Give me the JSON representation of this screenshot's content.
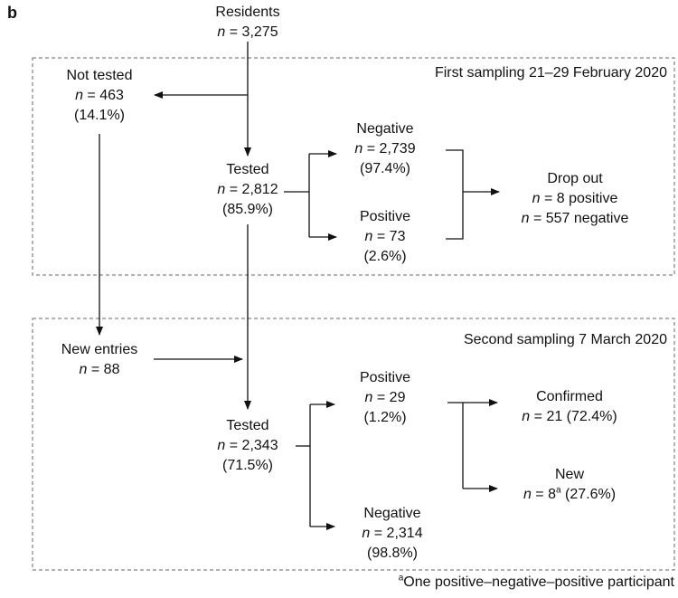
{
  "panel_label": "b",
  "sections": {
    "first": "First sampling 21–29 February 2020",
    "second": "Second sampling 7 March 2020"
  },
  "n_symbol": "n",
  "equals": " = ",
  "nodes": {
    "residents": {
      "label": "Residents",
      "count": "3,275"
    },
    "not_tested": {
      "label": "Not tested",
      "count": "463",
      "percent": "(14.1%)"
    },
    "tested_1": {
      "label": "Tested",
      "count": "2,812",
      "percent": "(85.9%)"
    },
    "negative_1": {
      "label": "Negative",
      "count": "2,739",
      "percent": "(97.4%)"
    },
    "positive_1": {
      "label": "Positive",
      "count": "73",
      "percent": "(2.6%)"
    },
    "drop_out": {
      "label": "Drop out",
      "line1": "8 positive",
      "line2": "557 negative"
    },
    "new_entries": {
      "label": "New entries",
      "count": "88"
    },
    "tested_2": {
      "label": "Tested",
      "count": "2,343",
      "percent": "(71.5%)"
    },
    "positive_2": {
      "label": "Positive",
      "count": "29",
      "percent": "(1.2%)"
    },
    "negative_2": {
      "label": "Negative",
      "count": "2,314",
      "percent": "(98.8%)"
    },
    "confirmed": {
      "label": "Confirmed",
      "count": "21 (72.4%)"
    },
    "new": {
      "label": "New",
      "count": "8",
      "sup": "a",
      "rest": " (27.6%)"
    }
  },
  "footnote": {
    "marker": "a",
    "text": "One positive–negative–positive participant"
  }
}
